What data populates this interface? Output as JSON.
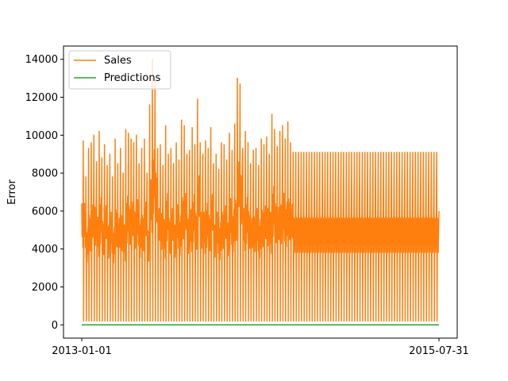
{
  "chart_data": {
    "type": "line",
    "title": "",
    "xlabel": "",
    "ylabel": "Error",
    "xlim": [
      "2013-01-01",
      "2015-07-31"
    ],
    "ylim": [
      -700,
      14700
    ],
    "x_ticks": [
      "2013-01-01",
      "2015-07-31"
    ],
    "y_ticks": [
      0,
      2000,
      4000,
      6000,
      8000,
      10000,
      12000,
      14000
    ],
    "grid": false,
    "legend": {
      "placement": "top-left",
      "entries": [
        "Sales",
        "Predictions"
      ]
    },
    "colors": {
      "Sales": "#ff7f0e",
      "Predictions": "#2ca02c"
    },
    "series": [
      {
        "name": "Sales",
        "pattern": "weekly spikes",
        "baseline": 200,
        "weekly_peaks": [
          [
            "2013-01-05",
            9700
          ],
          [
            "2013-01-12",
            7800
          ],
          [
            "2013-01-19",
            9300
          ],
          [
            "2013-01-26",
            9600
          ],
          [
            "2013-02-02",
            10000
          ],
          [
            "2013-02-09",
            8600
          ],
          [
            "2013-02-16",
            10200
          ],
          [
            "2013-02-23",
            8800
          ],
          [
            "2013-03-02",
            9500
          ],
          [
            "2013-03-09",
            8400
          ],
          [
            "2013-03-16",
            9000
          ],
          [
            "2013-03-23",
            7800
          ],
          [
            "2013-03-30",
            9800
          ],
          [
            "2013-04-06",
            8500
          ],
          [
            "2013-04-13",
            9300
          ],
          [
            "2013-04-20",
            8000
          ],
          [
            "2013-04-27",
            10300
          ],
          [
            "2013-05-04",
            10100
          ],
          [
            "2013-05-11",
            9800
          ],
          [
            "2013-05-18",
            9600
          ],
          [
            "2013-05-25",
            10000
          ],
          [
            "2013-06-01",
            8500
          ],
          [
            "2013-06-08",
            9300
          ],
          [
            "2013-06-15",
            9800
          ],
          [
            "2013-06-22",
            8000
          ],
          [
            "2013-06-29",
            11600
          ],
          [
            "2013-07-06",
            14000
          ],
          [
            "2013-07-13",
            12900
          ],
          [
            "2013-07-20",
            9300
          ],
          [
            "2013-07-27",
            9500
          ],
          [
            "2013-08-03",
            8400
          ],
          [
            "2013-08-10",
            10500
          ],
          [
            "2013-08-17",
            9000
          ],
          [
            "2013-08-24",
            9300
          ],
          [
            "2013-08-31",
            8500
          ],
          [
            "2013-09-07",
            9600
          ],
          [
            "2013-09-14",
            8700
          ],
          [
            "2013-09-21",
            10800
          ],
          [
            "2013-09-28",
            10500
          ],
          [
            "2013-10-05",
            9000
          ],
          [
            "2013-10-12",
            9200
          ],
          [
            "2013-10-19",
            10400
          ],
          [
            "2013-10-26",
            9500
          ],
          [
            "2013-11-02",
            11900
          ],
          [
            "2013-11-09",
            9600
          ],
          [
            "2013-11-16",
            9000
          ],
          [
            "2013-11-23",
            9700
          ],
          [
            "2013-11-30",
            9300
          ],
          [
            "2013-12-07",
            10400
          ],
          [
            "2013-12-14",
            8500
          ],
          [
            "2013-12-21",
            9000
          ],
          [
            "2013-12-28",
            8200
          ],
          [
            "2014-01-04",
            9600
          ],
          [
            "2014-01-11",
            9500
          ],
          [
            "2014-01-18",
            8700
          ],
          [
            "2014-01-25",
            10100
          ],
          [
            "2014-02-01",
            9200
          ],
          [
            "2014-02-08",
            10600
          ],
          [
            "2014-02-15",
            13000
          ],
          [
            "2014-02-22",
            12700
          ],
          [
            "2014-03-01",
            9300
          ],
          [
            "2014-03-08",
            10200
          ],
          [
            "2014-03-15",
            9600
          ],
          [
            "2014-03-22",
            8500
          ],
          [
            "2014-03-29",
            9200
          ],
          [
            "2014-04-05",
            9300
          ],
          [
            "2014-04-12",
            8400
          ],
          [
            "2014-04-19",
            9800
          ],
          [
            "2014-04-26",
            9500
          ],
          [
            "2014-05-03",
            9900
          ],
          [
            "2014-05-10",
            9000
          ],
          [
            "2014-05-17",
            11100
          ],
          [
            "2014-05-24",
            10300
          ],
          [
            "2014-05-31",
            9400
          ],
          [
            "2014-06-07",
            10200
          ],
          [
            "2014-06-14",
            10500
          ],
          [
            "2014-06-21",
            9800
          ],
          [
            "2014-06-28",
            10700
          ],
          [
            "2014-07-05",
            9600
          ],
          [
            "2014-07-12",
            9100
          ]
        ]
      },
      {
        "name": "Predictions",
        "constant": 0
      }
    ]
  }
}
